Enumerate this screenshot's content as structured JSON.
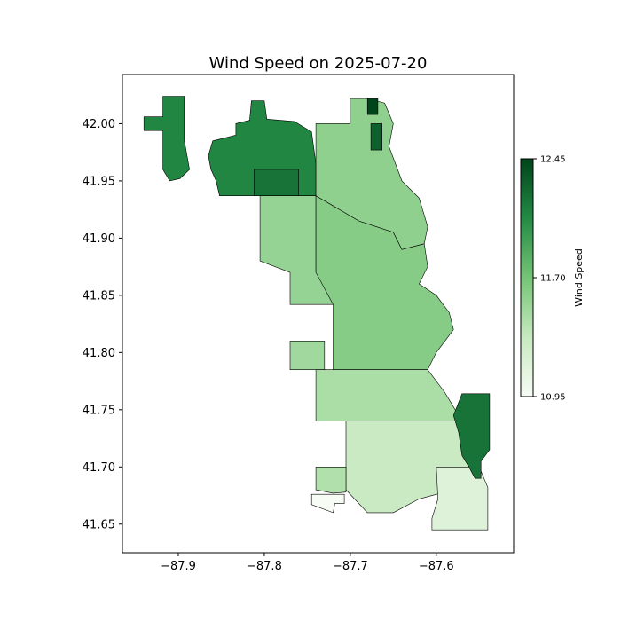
{
  "chart_data": {
    "type": "choropleth",
    "title": "Wind Speed on 2025-07-20",
    "xlim": [
      -87.965,
      -87.51
    ],
    "ylim": [
      41.625,
      42.043
    ],
    "x_ticks": [
      "−87.9",
      "−87.8",
      "−87.7",
      "−87.6"
    ],
    "x_tick_values": [
      -87.9,
      -87.8,
      -87.7,
      -87.6
    ],
    "y_ticks": [
      "41.65",
      "41.70",
      "41.75",
      "41.80",
      "41.85",
      "41.90",
      "41.95",
      "42.00"
    ],
    "y_tick_values": [
      41.65,
      41.7,
      41.75,
      41.8,
      41.85,
      41.9,
      41.95,
      42.0
    ],
    "colorbar": {
      "label": "Wind Speed",
      "ticks": [
        "10.95",
        "11.70",
        "12.45"
      ],
      "tick_values": [
        10.95,
        11.7,
        12.45
      ],
      "colormap": "Greens",
      "colors": [
        "#f7fcf5",
        "#c7e9c0",
        "#74c476",
        "#238b45",
        "#00441b"
      ]
    },
    "regions": [
      {
        "value": 12.1,
        "poly": [
          [
            -87.94,
            42.006
          ],
          [
            -87.918,
            42.006
          ],
          [
            -87.918,
            42.024
          ],
          [
            -87.893,
            42.024
          ],
          [
            -87.893,
            41.985
          ],
          [
            -87.887,
            41.96
          ],
          [
            -87.898,
            41.952
          ],
          [
            -87.91,
            41.95
          ],
          [
            -87.918,
            41.96
          ],
          [
            -87.918,
            41.994
          ],
          [
            -87.94,
            41.994
          ]
        ]
      },
      {
        "value": 12.1,
        "poly": [
          [
            -87.86,
            41.985
          ],
          [
            -87.833,
            41.99
          ],
          [
            -87.833,
            42.0
          ],
          [
            -87.817,
            42.003
          ],
          [
            -87.815,
            42.02
          ],
          [
            -87.8,
            42.02
          ],
          [
            -87.797,
            42.004
          ],
          [
            -87.765,
            42.002
          ],
          [
            -87.745,
            41.993
          ],
          [
            -87.74,
            41.965
          ],
          [
            -87.74,
            41.937
          ],
          [
            -87.805,
            41.937
          ],
          [
            -87.83,
            41.937
          ],
          [
            -87.852,
            41.937
          ],
          [
            -87.856,
            41.95
          ],
          [
            -87.862,
            41.96
          ],
          [
            -87.865,
            41.972
          ]
        ]
      },
      {
        "value": 12.2,
        "poly": [
          [
            -87.812,
            41.96
          ],
          [
            -87.76,
            41.96
          ],
          [
            -87.76,
            41.937
          ],
          [
            -87.812,
            41.937
          ]
        ]
      },
      {
        "value": 11.55,
        "poly": [
          [
            -87.805,
            41.937
          ],
          [
            -87.74,
            41.937
          ],
          [
            -87.74,
            41.87
          ],
          [
            -87.72,
            41.86
          ],
          [
            -87.72,
            41.842
          ],
          [
            -87.77,
            41.842
          ],
          [
            -87.77,
            41.87
          ],
          [
            -87.805,
            41.88
          ],
          [
            -87.805,
            41.91
          ]
        ]
      },
      {
        "value": 11.58,
        "poly": [
          [
            -87.74,
            42.0
          ],
          [
            -87.7,
            42.0
          ],
          [
            -87.7,
            42.022
          ],
          [
            -87.68,
            42.022
          ],
          [
            -87.66,
            42.018
          ],
          [
            -87.65,
            42.0
          ],
          [
            -87.655,
            41.98
          ],
          [
            -87.64,
            41.95
          ],
          [
            -87.62,
            41.935
          ],
          [
            -87.61,
            41.91
          ],
          [
            -87.614,
            41.895
          ],
          [
            -87.64,
            41.89
          ],
          [
            -87.65,
            41.905
          ],
          [
            -87.69,
            41.915
          ],
          [
            -87.74,
            41.937
          ]
        ]
      },
      {
        "value": 12.45,
        "poly": [
          [
            -87.68,
            42.022
          ],
          [
            -87.668,
            42.022
          ],
          [
            -87.668,
            42.008
          ],
          [
            -87.68,
            42.008
          ]
        ]
      },
      {
        "value": 12.3,
        "poly": [
          [
            -87.676,
            42.0
          ],
          [
            -87.663,
            42.0
          ],
          [
            -87.663,
            41.977
          ],
          [
            -87.676,
            41.977
          ]
        ]
      },
      {
        "value": 11.62,
        "poly": [
          [
            -87.74,
            41.937
          ],
          [
            -87.69,
            41.915
          ],
          [
            -87.65,
            41.905
          ],
          [
            -87.64,
            41.89
          ],
          [
            -87.614,
            41.895
          ],
          [
            -87.61,
            41.875
          ],
          [
            -87.62,
            41.86
          ],
          [
            -87.6,
            41.85
          ],
          [
            -87.585,
            41.835
          ],
          [
            -87.58,
            41.82
          ],
          [
            -87.6,
            41.8
          ],
          [
            -87.61,
            41.785
          ],
          [
            -87.72,
            41.785
          ],
          [
            -87.72,
            41.842
          ],
          [
            -87.74,
            41.87
          ]
        ]
      },
      {
        "value": 11.5,
        "poly": [
          [
            -87.77,
            41.81
          ],
          [
            -87.73,
            41.81
          ],
          [
            -87.73,
            41.785
          ],
          [
            -87.77,
            41.785
          ]
        ]
      },
      {
        "value": 11.45,
        "poly": [
          [
            -87.74,
            41.785
          ],
          [
            -87.61,
            41.785
          ],
          [
            -87.59,
            41.765
          ],
          [
            -87.57,
            41.74
          ],
          [
            -87.61,
            41.74
          ],
          [
            -87.66,
            41.74
          ],
          [
            -87.705,
            41.74
          ],
          [
            -87.74,
            41.74
          ]
        ]
      },
      {
        "value": 11.3,
        "poly": [
          [
            -87.705,
            41.74
          ],
          [
            -87.57,
            41.74
          ],
          [
            -87.548,
            41.73
          ],
          [
            -87.548,
            41.7
          ],
          [
            -87.56,
            41.69
          ],
          [
            -87.59,
            41.678
          ],
          [
            -87.62,
            41.672
          ],
          [
            -87.65,
            41.66
          ],
          [
            -87.68,
            41.66
          ],
          [
            -87.705,
            41.68
          ]
        ]
      },
      {
        "value": 11.15,
        "poly": [
          [
            -87.6,
            41.7
          ],
          [
            -87.55,
            41.7
          ],
          [
            -87.54,
            41.682
          ],
          [
            -87.54,
            41.645
          ],
          [
            -87.605,
            41.645
          ],
          [
            -87.605,
            41.655
          ],
          [
            -87.598,
            41.672
          ]
        ]
      },
      {
        "value": 11.42,
        "poly": [
          [
            -87.74,
            41.7
          ],
          [
            -87.705,
            41.7
          ],
          [
            -87.705,
            41.678
          ],
          [
            -87.72,
            41.677
          ],
          [
            -87.74,
            41.68
          ]
        ]
      },
      {
        "value": 10.95,
        "poly": [
          [
            -87.745,
            41.676
          ],
          [
            -87.707,
            41.676
          ],
          [
            -87.707,
            41.668
          ],
          [
            -87.718,
            41.668
          ],
          [
            -87.72,
            41.66
          ],
          [
            -87.745,
            41.667
          ]
        ]
      },
      {
        "value": 12.2,
        "poly": [
          [
            -87.57,
            41.764
          ],
          [
            -87.538,
            41.764
          ],
          [
            -87.538,
            41.715
          ],
          [
            -87.548,
            41.705
          ],
          [
            -87.548,
            41.69
          ],
          [
            -87.555,
            41.69
          ],
          [
            -87.562,
            41.7
          ],
          [
            -87.57,
            41.71
          ],
          [
            -87.574,
            41.73
          ],
          [
            -87.58,
            41.745
          ]
        ]
      }
    ]
  }
}
